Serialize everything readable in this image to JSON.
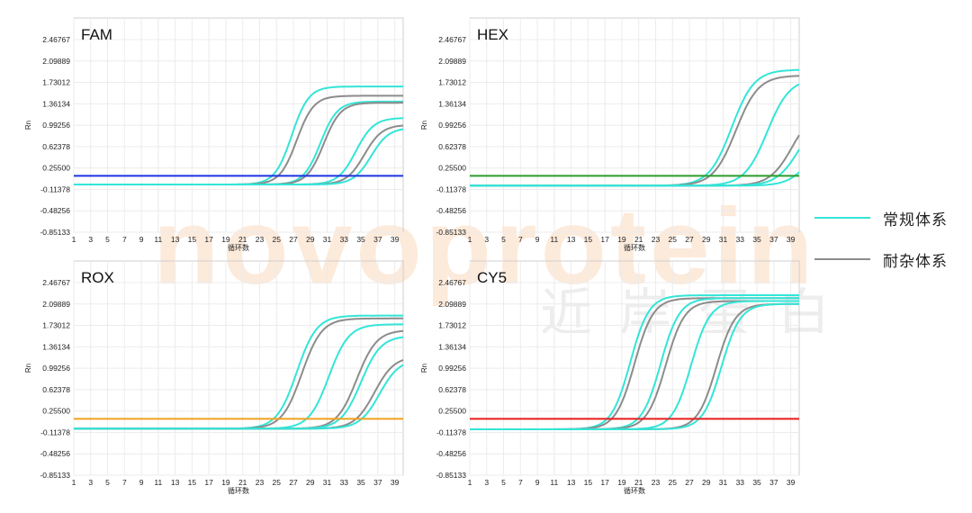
{
  "watermark": {
    "text": "novoprotein",
    "subtext": "近岸蛋白"
  },
  "legend": {
    "items": [
      {
        "label": "常规体系",
        "color": "#33E5D8"
      },
      {
        "label": "耐杂体系",
        "color": "#8C8C8C"
      }
    ]
  },
  "chart_data": [
    {
      "type": "line",
      "title": "FAM",
      "xlabel": "循环数",
      "ylabel": "Rn",
      "xlim": [
        1,
        40
      ],
      "ylim": [
        -0.85133,
        2.84
      ],
      "x_ticks": [
        "1",
        "3",
        "5",
        "7",
        "9",
        "11",
        "13",
        "15",
        "17",
        "19",
        "21",
        "23",
        "25",
        "27",
        "29",
        "31",
        "33",
        "35",
        "37",
        "39"
      ],
      "y_ticks": [
        "-0.85133",
        "-0.48256",
        "-0.11378",
        "0.25500",
        "0.62378",
        "0.99256",
        "1.36134",
        "1.73012",
        "2.09889",
        "2.46767"
      ],
      "grid": true,
      "threshold": {
        "value": 0.12,
        "color": "#1F33E0"
      },
      "series": [
        {
          "group": "常规体系",
          "baseline": -0.03,
          "plateau": 1.66,
          "midpoint": 26.8,
          "slope": 1.0
        },
        {
          "group": "耐杂体系",
          "baseline": -0.03,
          "plateau": 1.5,
          "midpoint": 27.4,
          "slope": 1.0
        },
        {
          "group": "常规体系",
          "baseline": -0.03,
          "plateau": 1.4,
          "midpoint": 30.2,
          "slope": 1.0
        },
        {
          "group": "耐杂体系",
          "baseline": -0.03,
          "plateau": 1.38,
          "midpoint": 30.6,
          "slope": 1.0
        },
        {
          "group": "常规体系",
          "baseline": -0.03,
          "plateau": 1.12,
          "midpoint": 34.4,
          "slope": 0.95
        },
        {
          "group": "耐杂体系",
          "baseline": -0.03,
          "plateau": 1.0,
          "midpoint": 35.4,
          "slope": 0.95
        },
        {
          "group": "常规体系",
          "baseline": -0.03,
          "plateau": 0.95,
          "midpoint": 36.2,
          "slope": 0.95
        }
      ]
    },
    {
      "type": "line",
      "title": "HEX",
      "xlabel": "循环数",
      "ylabel": "Rn",
      "xlim": [
        1,
        40
      ],
      "ylim": [
        -0.85133,
        2.84
      ],
      "x_ticks": [
        "1",
        "3",
        "5",
        "7",
        "9",
        "11",
        "13",
        "15",
        "17",
        "19",
        "21",
        "23",
        "25",
        "27",
        "29",
        "31",
        "33",
        "35",
        "37",
        "39"
      ],
      "y_ticks": [
        "-0.85133",
        "-0.48256",
        "-0.11378",
        "0.25500",
        "0.62378",
        "0.99256",
        "1.36134",
        "1.73012",
        "2.09889",
        "2.46767"
      ],
      "grid": true,
      "threshold": {
        "value": 0.12,
        "color": "#2E9B2E"
      },
      "series": [
        {
          "group": "常规体系",
          "baseline": -0.05,
          "plateau": 1.95,
          "midpoint": 32.0,
          "slope": 0.75
        },
        {
          "group": "耐杂体系",
          "baseline": -0.05,
          "plateau": 1.85,
          "midpoint": 32.5,
          "slope": 0.75
        },
        {
          "group": "常规体系",
          "baseline": -0.05,
          "plateau": 1.8,
          "midpoint": 36.2,
          "slope": 0.75
        },
        {
          "group": "耐杂体系",
          "baseline": -0.05,
          "plateau": 1.3,
          "midpoint": 39.2,
          "slope": 0.75
        },
        {
          "group": "常规体系",
          "baseline": -0.05,
          "plateau": 1.2,
          "midpoint": 40.0,
          "slope": 0.75
        },
        {
          "group": "常规体系",
          "baseline": -0.05,
          "plateau": 0.7,
          "midpoint": 41.0,
          "slope": 0.8
        }
      ]
    },
    {
      "type": "line",
      "title": "ROX",
      "xlabel": "循环数",
      "ylabel": "Rn",
      "xlim": [
        1,
        40
      ],
      "ylim": [
        -0.85133,
        2.84
      ],
      "x_ticks": [
        "1",
        "3",
        "5",
        "7",
        "9",
        "11",
        "13",
        "15",
        "17",
        "19",
        "21",
        "23",
        "25",
        "27",
        "29",
        "31",
        "33",
        "35",
        "37",
        "39"
      ],
      "y_ticks": [
        "-0.85133",
        "-0.48256",
        "-0.11378",
        "0.25500",
        "0.62378",
        "0.99256",
        "1.36134",
        "1.73012",
        "2.09889",
        "2.46767"
      ],
      "grid": true,
      "threshold": {
        "value": 0.12,
        "color": "#F0A020"
      },
      "series": [
        {
          "group": "常规体系",
          "baseline": -0.05,
          "plateau": 1.9,
          "midpoint": 27.4,
          "slope": 0.85
        },
        {
          "group": "耐杂体系",
          "baseline": -0.05,
          "plateau": 1.85,
          "midpoint": 28.0,
          "slope": 0.85
        },
        {
          "group": "常规体系",
          "baseline": -0.05,
          "plateau": 1.75,
          "midpoint": 31.2,
          "slope": 0.85
        },
        {
          "group": "耐杂体系",
          "baseline": -0.05,
          "plateau": 1.65,
          "midpoint": 34.5,
          "slope": 0.85
        },
        {
          "group": "常规体系",
          "baseline": -0.05,
          "plateau": 1.55,
          "midpoint": 35.0,
          "slope": 0.85
        },
        {
          "group": "耐杂体系",
          "baseline": -0.05,
          "plateau": 1.2,
          "midpoint": 36.6,
          "slope": 0.85
        },
        {
          "group": "常规体系",
          "baseline": -0.05,
          "plateau": 1.15,
          "midpoint": 37.2,
          "slope": 0.85
        }
      ]
    },
    {
      "type": "line",
      "title": "CY5",
      "xlabel": "循环数",
      "ylabel": "Rn",
      "xlim": [
        1,
        40
      ],
      "ylim": [
        -0.85133,
        2.84
      ],
      "x_ticks": [
        "1",
        "3",
        "5",
        "7",
        "9",
        "11",
        "13",
        "15",
        "17",
        "19",
        "21",
        "23",
        "25",
        "27",
        "29",
        "31",
        "33",
        "35",
        "37",
        "39"
      ],
      "y_ticks": [
        "-0.85133",
        "-0.48256",
        "-0.11378",
        "0.25500",
        "0.62378",
        "0.99256",
        "1.36134",
        "1.73012",
        "2.09889",
        "2.46767"
      ],
      "grid": true,
      "threshold": {
        "value": 0.12,
        "color": "#E81C1C"
      },
      "series": [
        {
          "group": "常规体系",
          "baseline": -0.06,
          "plateau": 2.25,
          "midpoint": 20.0,
          "slope": 0.9
        },
        {
          "group": "耐杂体系",
          "baseline": -0.06,
          "plateau": 2.2,
          "midpoint": 20.5,
          "slope": 0.9
        },
        {
          "group": "常规体系",
          "baseline": -0.06,
          "plateau": 2.2,
          "midpoint": 23.6,
          "slope": 0.9
        },
        {
          "group": "耐杂体系",
          "baseline": -0.06,
          "plateau": 2.15,
          "midpoint": 24.2,
          "slope": 0.9
        },
        {
          "group": "常规体系",
          "baseline": -0.06,
          "plateau": 2.15,
          "midpoint": 27.2,
          "slope": 0.9
        },
        {
          "group": "耐杂体系",
          "baseline": -0.06,
          "plateau": 2.1,
          "midpoint": 30.2,
          "slope": 0.9
        },
        {
          "group": "常规体系",
          "baseline": -0.06,
          "plateau": 2.1,
          "midpoint": 30.8,
          "slope": 0.9
        }
      ]
    }
  ]
}
